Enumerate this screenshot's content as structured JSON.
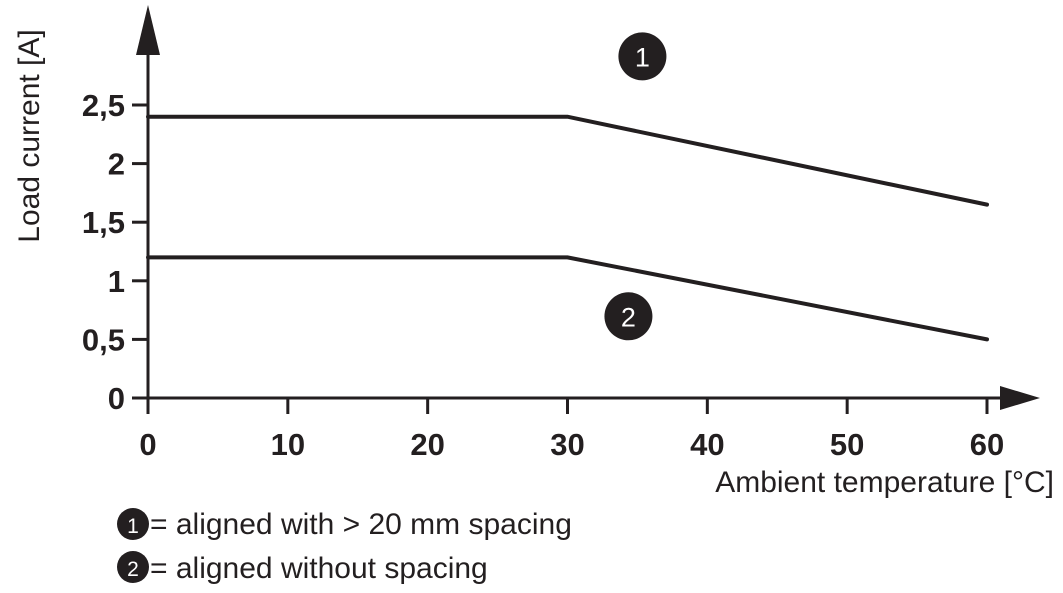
{
  "chart_data": {
    "type": "line",
    "xlabel": "Ambient temperature [°C]",
    "ylabel": "Load current [A]",
    "xlim": [
      0,
      60
    ],
    "ylim": [
      0,
      2.5
    ],
    "x_ticks": [
      "0",
      "10",
      "20",
      "30",
      "40",
      "50",
      "60"
    ],
    "y_ticks": [
      "0",
      "0,5",
      "1",
      "1,5",
      "2",
      "2,5"
    ],
    "grid": false,
    "series": [
      {
        "name": "1",
        "x": [
          0,
          30,
          60
        ],
        "y": [
          2.4,
          2.4,
          1.65
        ]
      },
      {
        "name": "2",
        "x": [
          0,
          30,
          60
        ],
        "y": [
          1.2,
          1.2,
          0.5
        ]
      }
    ],
    "legend": [
      {
        "marker": "1",
        "text": "= aligned with > 20 mm spacing"
      },
      {
        "marker": "2",
        "text": "= aligned without spacing"
      }
    ],
    "colors": {
      "line": "#231f20",
      "marker_fill": "#231f20",
      "marker_text": "#ffffff"
    }
  }
}
